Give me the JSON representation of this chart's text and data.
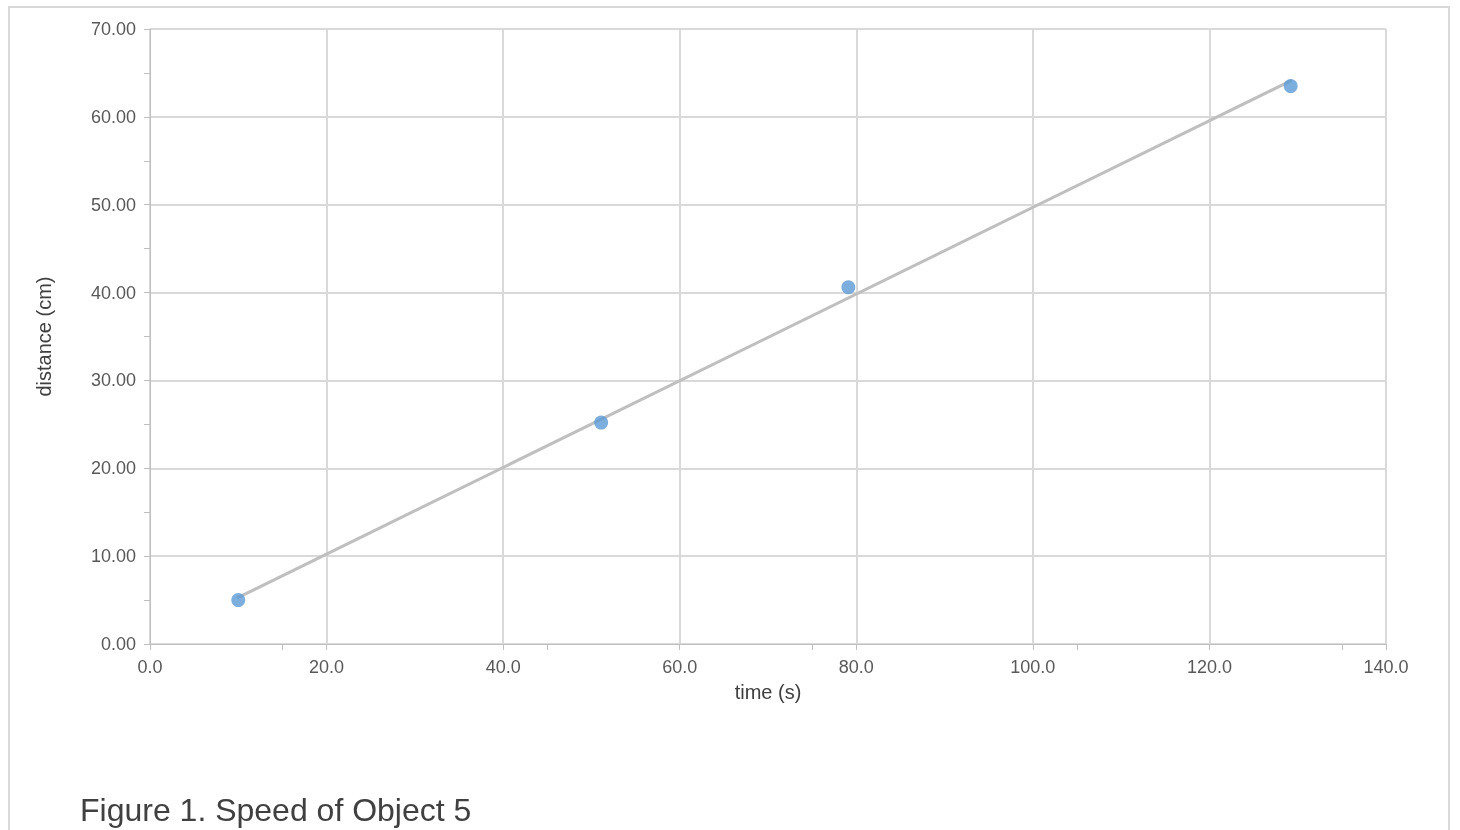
{
  "chart_data": {
    "type": "scatter",
    "xlabel": "time (s)",
    "ylabel": "distance (cm)",
    "annotations": [
      "Figure 1. Speed of Object 5"
    ],
    "series": [
      {
        "color": "#5b9bd5",
        "x": [
          10.0,
          51.1,
          79.1,
          129.2
        ],
        "values": [
          5.0,
          25.2,
          40.6,
          63.5
        ],
        "marker": "circle"
      },
      {
        "type": "line",
        "color": "#bfbfbf",
        "x": [
          10.0,
          129.2
        ],
        "values": [
          5.3,
          64.1
        ],
        "marker": "none"
      }
    ],
    "xlim": [
      0,
      140
    ],
    "xticks": [
      {
        "value": 0,
        "label": "0.0"
      },
      {
        "value": 20,
        "label": "20.0"
      },
      {
        "value": 40,
        "label": "40.0"
      },
      {
        "value": 60,
        "label": "60.0"
      },
      {
        "value": 80,
        "label": "80.0"
      },
      {
        "value": 100,
        "label": "100.0"
      },
      {
        "value": 120,
        "label": "120.0"
      },
      {
        "value": 140,
        "label": "140.0"
      }
    ],
    "ylim": [
      0,
      70
    ],
    "yticks": [
      {
        "value": 0,
        "label": "0.00"
      },
      {
        "value": 10,
        "label": "10.00"
      },
      {
        "value": 20,
        "label": "20.00"
      },
      {
        "value": 30,
        "label": "30.00"
      },
      {
        "value": 40,
        "label": "40.00"
      },
      {
        "value": 50,
        "label": "50.00"
      },
      {
        "value": 60,
        "label": "60.00"
      },
      {
        "value": 70,
        "label": "70.00"
      }
    ],
    "grid": true
  }
}
